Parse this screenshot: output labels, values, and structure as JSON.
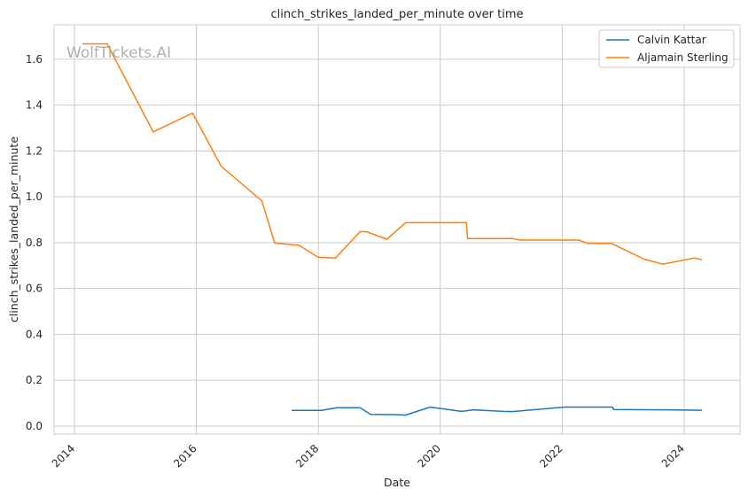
{
  "chart_data": {
    "type": "line",
    "title": "clinch_strikes_landed_per_minute over time",
    "xlabel": "Date",
    "ylabel": "clinch_strikes_landed_per_minute",
    "watermark": "WolfTickets.AI",
    "xlim": [
      "2013-09-01",
      "2024-12-01"
    ],
    "ylim": [
      -0.035,
      1.75
    ],
    "x_ticks": [
      "2014",
      "2016",
      "2018",
      "2020",
      "2022",
      "2024"
    ],
    "y_ticks": [
      "0.0",
      "0.2",
      "0.4",
      "0.6",
      "0.8",
      "1.0",
      "1.2",
      "1.4",
      "1.6"
    ],
    "grid": true,
    "legend_position": "top-right",
    "colors": {
      "Calvin Kattar": "#1f77b4",
      "Aljamain Sterling": "#ff7f0e"
    },
    "series": [
      {
        "name": "Calvin Kattar",
        "points": [
          [
            "2017-07-29",
            0.068
          ],
          [
            "2018-01-20",
            0.068
          ],
          [
            "2018-04-21",
            0.08
          ],
          [
            "2018-09-08",
            0.08
          ],
          [
            "2018-11-10",
            0.051
          ],
          [
            "2019-03-30",
            0.05
          ],
          [
            "2019-06-08",
            0.048
          ],
          [
            "2019-11-02",
            0.083
          ],
          [
            "2020-05-09",
            0.064
          ],
          [
            "2020-07-18",
            0.071
          ],
          [
            "2021-01-16",
            0.064
          ],
          [
            "2021-03-06",
            0.063
          ],
          [
            "2022-01-15",
            0.083
          ],
          [
            "2022-10-29",
            0.083
          ],
          [
            "2022-11-05",
            0.072
          ],
          [
            "2023-08-26",
            0.071
          ],
          [
            "2024-04-13",
            0.069
          ]
        ]
      },
      {
        "name": "Aljamain Sterling",
        "points": [
          [
            "2014-02-22",
            1.667
          ],
          [
            "2014-07-16",
            1.667
          ],
          [
            "2015-04-18",
            1.283
          ],
          [
            "2015-12-10",
            1.365
          ],
          [
            "2016-05-29",
            1.133
          ],
          [
            "2017-01-28",
            0.982
          ],
          [
            "2017-04-15",
            0.798
          ],
          [
            "2017-09-09",
            0.788
          ],
          [
            "2017-12-30",
            0.736
          ],
          [
            "2018-04-14",
            0.733
          ],
          [
            "2018-09-08",
            0.848
          ],
          [
            "2018-10-15",
            0.848
          ],
          [
            "2019-02-16",
            0.815
          ],
          [
            "2019-06-08",
            0.887
          ],
          [
            "2020-06-06",
            0.887
          ],
          [
            "2020-06-13",
            0.818
          ],
          [
            "2021-03-06",
            0.818
          ],
          [
            "2021-04-24",
            0.811
          ],
          [
            "2022-04-09",
            0.811
          ],
          [
            "2022-06-04",
            0.797
          ],
          [
            "2022-10-22",
            0.797
          ],
          [
            "2023-05-06",
            0.728
          ],
          [
            "2023-08-26",
            0.706
          ],
          [
            "2024-03-02",
            0.733
          ],
          [
            "2024-04-13",
            0.726
          ]
        ]
      }
    ]
  }
}
